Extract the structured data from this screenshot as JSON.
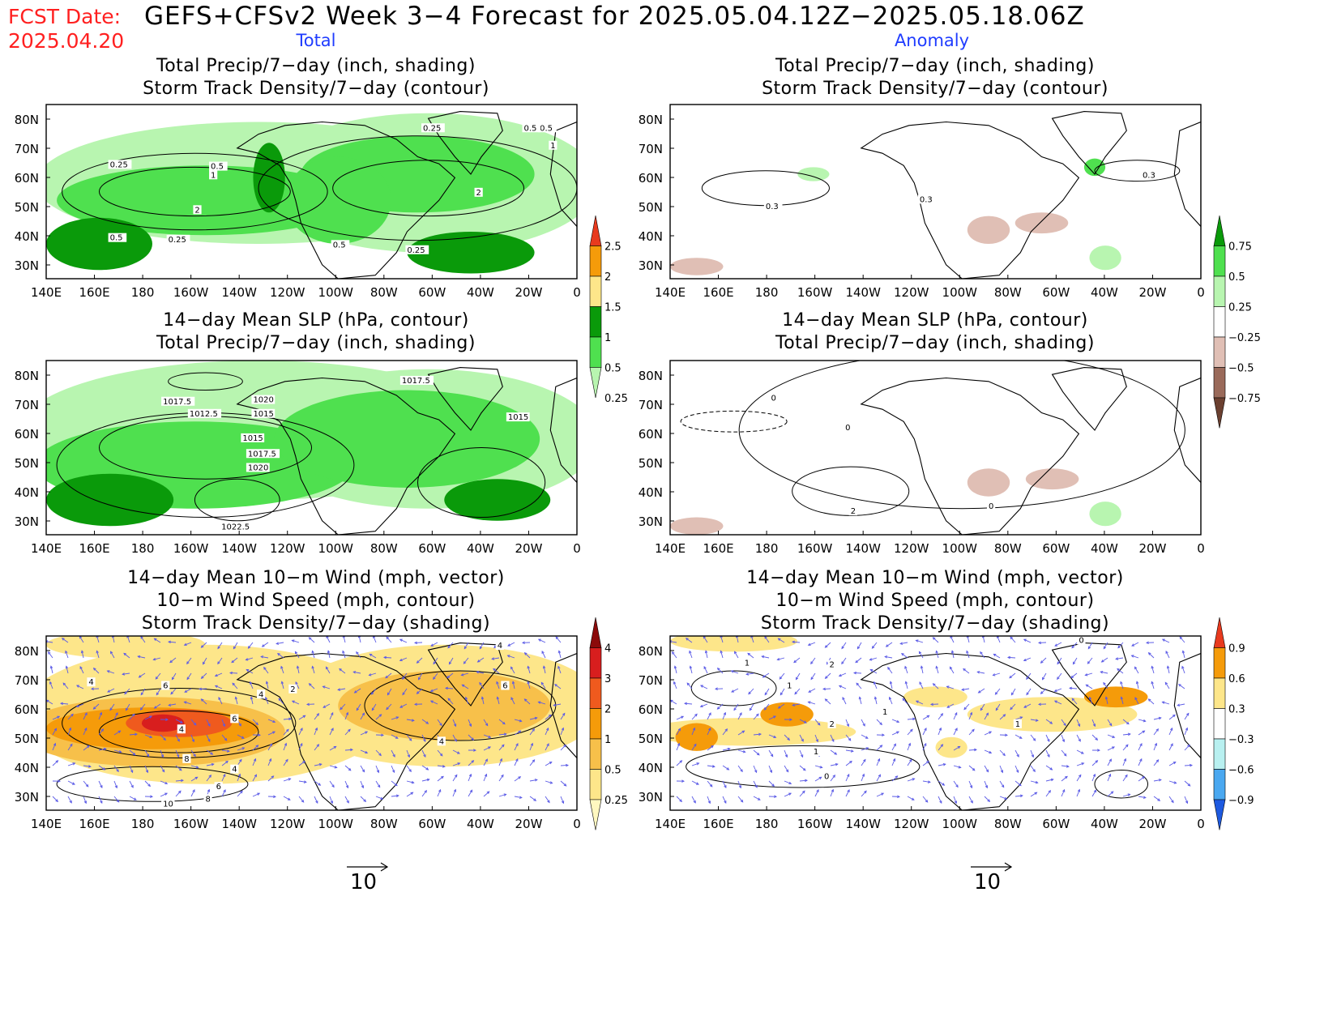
{
  "header": {
    "fcst_label": "FCST Date:",
    "fcst_date": "2025.04.20",
    "title": "GEFS+CFSv2 Week 3−4 Forecast for 2025.05.04.12Z−2025.05.18.06Z",
    "col_total": "Total",
    "col_anomaly": "Anomaly"
  },
  "axes": {
    "lon_labels": [
      "140E",
      "160E",
      "180",
      "160W",
      "140W",
      "120W",
      "100W",
      "80W",
      "60W",
      "40W",
      "20W",
      "0"
    ],
    "lat_labels": [
      "80N",
      "70N",
      "60N",
      "50N",
      "40N",
      "30N"
    ]
  },
  "panels": {
    "p1": {
      "title_lines": [
        "Total Precip/7−day (inch, shading)",
        "Storm Track Density/7−day (contour)"
      ],
      "contour_labels": [
        "0.25",
        "0.5",
        "1",
        "0.25",
        "0.5",
        "2",
        "0.5",
        "0.25",
        "0.5",
        "0.25",
        "2",
        "0.5",
        "1"
      ]
    },
    "p2": {
      "title_lines": [
        "Total Precip/7−day (inch, shading)",
        "Storm Track Density/7−day (contour)"
      ],
      "contour_labels": [
        "0.3",
        "0.3",
        "0.3"
      ]
    },
    "p3": {
      "title_lines": [
        "14−day Mean SLP (hPa, contour)",
        "Total Precip/7−day (inch, shading)"
      ],
      "contour_labels": [
        "1017.5",
        "1012.5",
        "1020",
        "1015",
        "1015",
        "1017.5",
        "1020",
        "1022.5",
        "1017.5",
        "1015"
      ]
    },
    "p4": {
      "title_lines": [
        "14−day Mean SLP (hPa, contour)",
        "Total Precip/7−day (inch, shading)"
      ],
      "contour_labels": [
        "0",
        "0",
        "2",
        "0"
      ]
    },
    "p5": {
      "title_lines": [
        "14−day Mean 10−m Wind (mph, vector)",
        "10−m Wind Speed (mph, contour)",
        "Storm Track Density/7−day (shading)"
      ],
      "contour_labels": [
        "4",
        "6",
        "6",
        "4",
        "8",
        "4",
        "6",
        "8",
        "10",
        "4",
        "2",
        "4",
        "6",
        "4"
      ]
    },
    "p6": {
      "title_lines": [
        "14−day Mean 10−m Wind (mph, vector)",
        "10−m Wind Speed (mph, contour)",
        "Storm Track Density/7−day (shading)"
      ],
      "contour_labels": [
        "1",
        "1",
        "2",
        "2",
        "1",
        "0",
        "1",
        "0",
        "1"
      ]
    }
  },
  "colorbars": {
    "total_precip": {
      "labels": [
        "2.5",
        "2",
        "1.5",
        "1",
        "0.5",
        "0.25"
      ],
      "colors": [
        "#e83a1e",
        "#f59b0a",
        "#fde68a",
        "#0a9a0a",
        "#4fe04f",
        "#b8f5b0"
      ]
    },
    "anom_precip": {
      "labels": [
        "0.75",
        "0.5",
        "0.25",
        "−0.25",
        "−0.5",
        "−0.75"
      ],
      "colors": [
        "#0a9a0a",
        "#4fe04f",
        "#b8f5b0",
        "#ffffff",
        "#e0bfb5",
        "#9a6a5a",
        "#6b4030"
      ]
    },
    "total_storm": {
      "labels": [
        "4",
        "3",
        "2",
        "1",
        "0.5",
        "0.25"
      ],
      "colors": [
        "#8b0a0a",
        "#d81e1e",
        "#ef5a1e",
        "#f59b0a",
        "#f7c04a",
        "#fde68a",
        "#fff8c0"
      ]
    },
    "anom_storm": {
      "labels": [
        "0.9",
        "0.6",
        "0.3",
        "−0.3",
        "−0.6",
        "−0.9"
      ],
      "colors": [
        "#e83a1e",
        "#f59b0a",
        "#fde68a",
        "#ffffff",
        "#b8f0f0",
        "#4aa8f0",
        "#1e5ae0"
      ]
    }
  },
  "vector_keys": {
    "left": "10",
    "right": "10"
  }
}
